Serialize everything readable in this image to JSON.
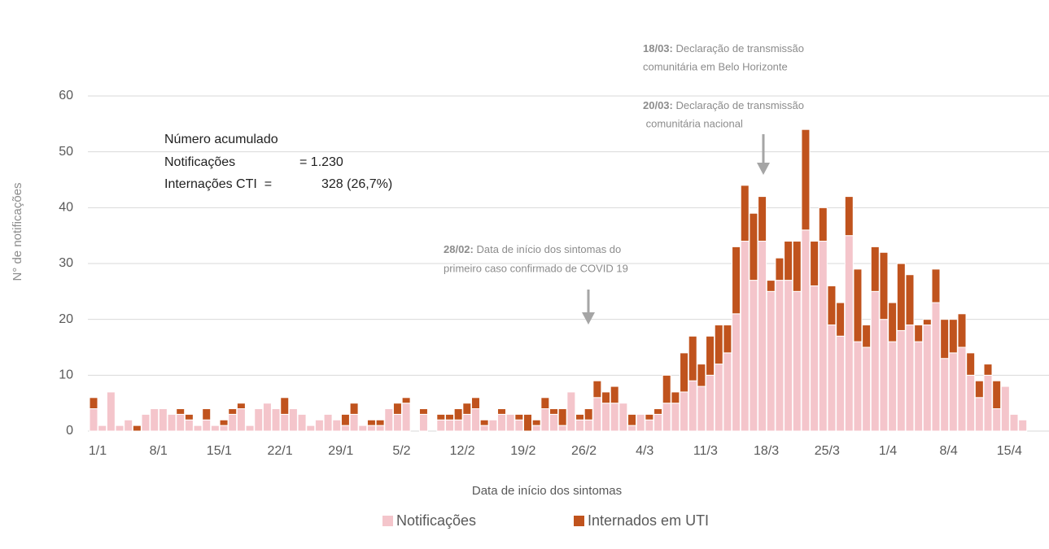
{
  "chart_data": {
    "type": "stacked_bar",
    "x_label": "Data de início dos sintomas",
    "y_label": "N° de notificações",
    "categories": [
      "1/1",
      null,
      null,
      null,
      null,
      null,
      null,
      "8/1",
      null,
      null,
      null,
      null,
      null,
      null,
      "15/1",
      null,
      null,
      null,
      null,
      null,
      null,
      "22/1",
      null,
      null,
      null,
      null,
      null,
      null,
      "29/1",
      null,
      null,
      null,
      null,
      null,
      null,
      "5/2",
      null,
      null,
      null,
      null,
      null,
      null,
      "12/2",
      null,
      null,
      null,
      null,
      null,
      null,
      "19/2",
      null,
      null,
      null,
      null,
      null,
      null,
      "26/2",
      null,
      null,
      null,
      null,
      null,
      null,
      "4/3",
      null,
      null,
      null,
      null,
      null,
      null,
      "11/3",
      null,
      null,
      null,
      null,
      null,
      null,
      "18/3",
      null,
      null,
      null,
      null,
      null,
      null,
      "25/3",
      null,
      null,
      null,
      null,
      null,
      null,
      "1/4",
      null,
      null,
      null,
      null,
      null,
      null,
      "8/4",
      null,
      null,
      null,
      null,
      null,
      null,
      "15/4",
      null,
      null
    ],
    "series": [
      {
        "name": "Notificações",
        "color": "#f4c5cb",
        "values": [
          4,
          1,
          7,
          1,
          2,
          0,
          3,
          4,
          4,
          3,
          3,
          2,
          1,
          2,
          1,
          1,
          3,
          4,
          1,
          4,
          5,
          4,
          3,
          4,
          3,
          1,
          2,
          3,
          2,
          1,
          3,
          1,
          1,
          1,
          4,
          3,
          5,
          0,
          3,
          0,
          2,
          2,
          2,
          3,
          4,
          1,
          2,
          3,
          3,
          2,
          0,
          1,
          4,
          3,
          1,
          7,
          2,
          2,
          6,
          5,
          5,
          5,
          1,
          3,
          2,
          3,
          5,
          5,
          7,
          9,
          8,
          10,
          12,
          14,
          21,
          34,
          27,
          34,
          25,
          27,
          27,
          25,
          36,
          26,
          34,
          19,
          17,
          35,
          16,
          15,
          25,
          20,
          16,
          18,
          19,
          16,
          19,
          23,
          13,
          14,
          15,
          10,
          6,
          10,
          4,
          8,
          3,
          2
        ]
      },
      {
        "name": "Internados em UTI",
        "color": "#c0531d",
        "values": [
          2,
          0,
          0,
          0,
          0,
          1,
          0,
          0,
          0,
          0,
          1,
          1,
          0,
          2,
          0,
          1,
          1,
          1,
          0,
          0,
          0,
          0,
          3,
          0,
          0,
          0,
          0,
          0,
          0,
          2,
          2,
          0,
          1,
          1,
          0,
          2,
          1,
          0,
          1,
          0,
          1,
          1,
          2,
          2,
          2,
          1,
          0,
          1,
          0,
          1,
          3,
          1,
          2,
          1,
          3,
          0,
          1,
          2,
          3,
          2,
          3,
          0,
          2,
          0,
          1,
          1,
          5,
          2,
          7,
          8,
          4,
          7,
          7,
          5,
          12,
          10,
          12,
          8,
          2,
          4,
          7,
          9,
          18,
          8,
          6,
          7,
          6,
          7,
          13,
          4,
          8,
          12,
          7,
          12,
          9,
          3,
          1,
          6,
          7,
          6,
          6,
          4,
          3,
          2,
          5,
          0,
          0,
          0
        ]
      }
    ],
    "ylim": [
      0,
      60
    ],
    "yticks": [
      0,
      10,
      20,
      30,
      40,
      50,
      60
    ],
    "grid": true,
    "legend": "bottom",
    "summary": {
      "title": "Número acumulado",
      "rows": [
        [
          "Notificações",
          "= 1.230"
        ],
        [
          "Internações CTI  =",
          "328 (26,7%)"
        ]
      ]
    },
    "annotations": [
      {
        "date": "18/03:",
        "text": [
          "Declaração de transmissão",
          "comunitária em Belo Horizonte"
        ]
      },
      {
        "date": "20/03:",
        "text": [
          "Declaração de transmissão",
          " comunitária nacional"
        ]
      },
      {
        "date": "28/02:",
        "text": [
          "Data de início dos sintomas do",
          "primeiro caso confirmado de COVID 19"
        ]
      }
    ]
  }
}
